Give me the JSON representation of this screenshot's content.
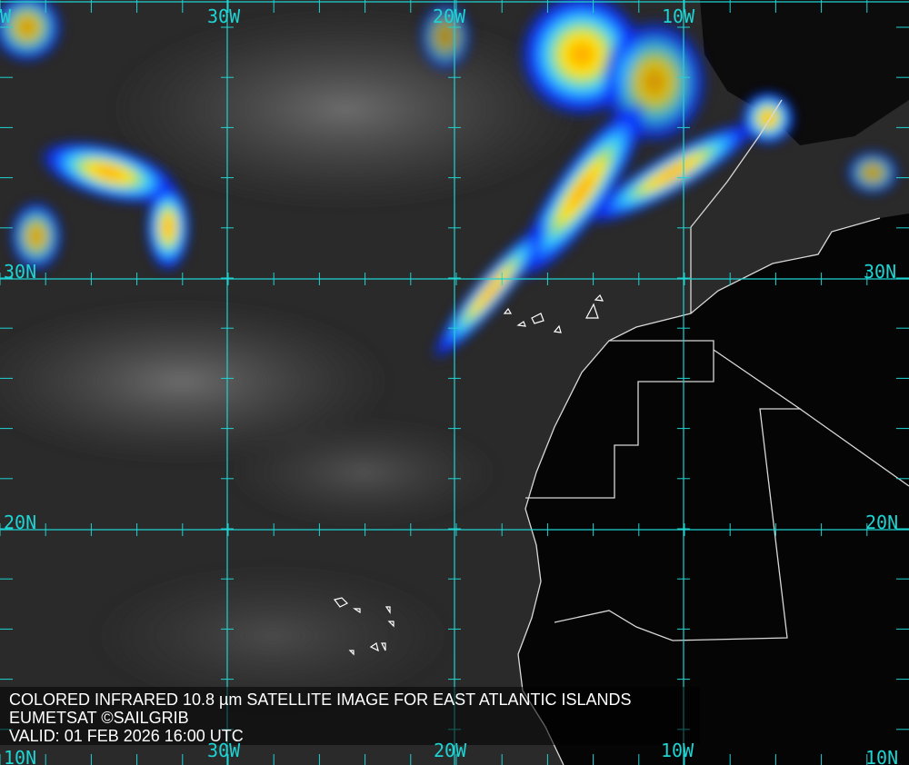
{
  "caption": {
    "line1": "COLORED INFRARED 10.8 µm SATELLITE IMAGE FOR EAST ATLANTIC ISLANDS",
    "line2": "EUMETSAT ©SAILGRIB",
    "line3": "VALID:  01 FEB 2026 16:00 UTC"
  },
  "grid_labels": {
    "top": [
      "W",
      "30W",
      "20W",
      "10W"
    ],
    "bottom": [
      "30W",
      "20W",
      "10W"
    ],
    "left": [
      "30N",
      "20N",
      "10N"
    ],
    "right": [
      "30N",
      "20N",
      "10N"
    ]
  },
  "colors": {
    "grid": "#1fd3d3",
    "ocean": "#2a2a2a",
    "land": "#050505",
    "border": "#d8d8d8"
  }
}
